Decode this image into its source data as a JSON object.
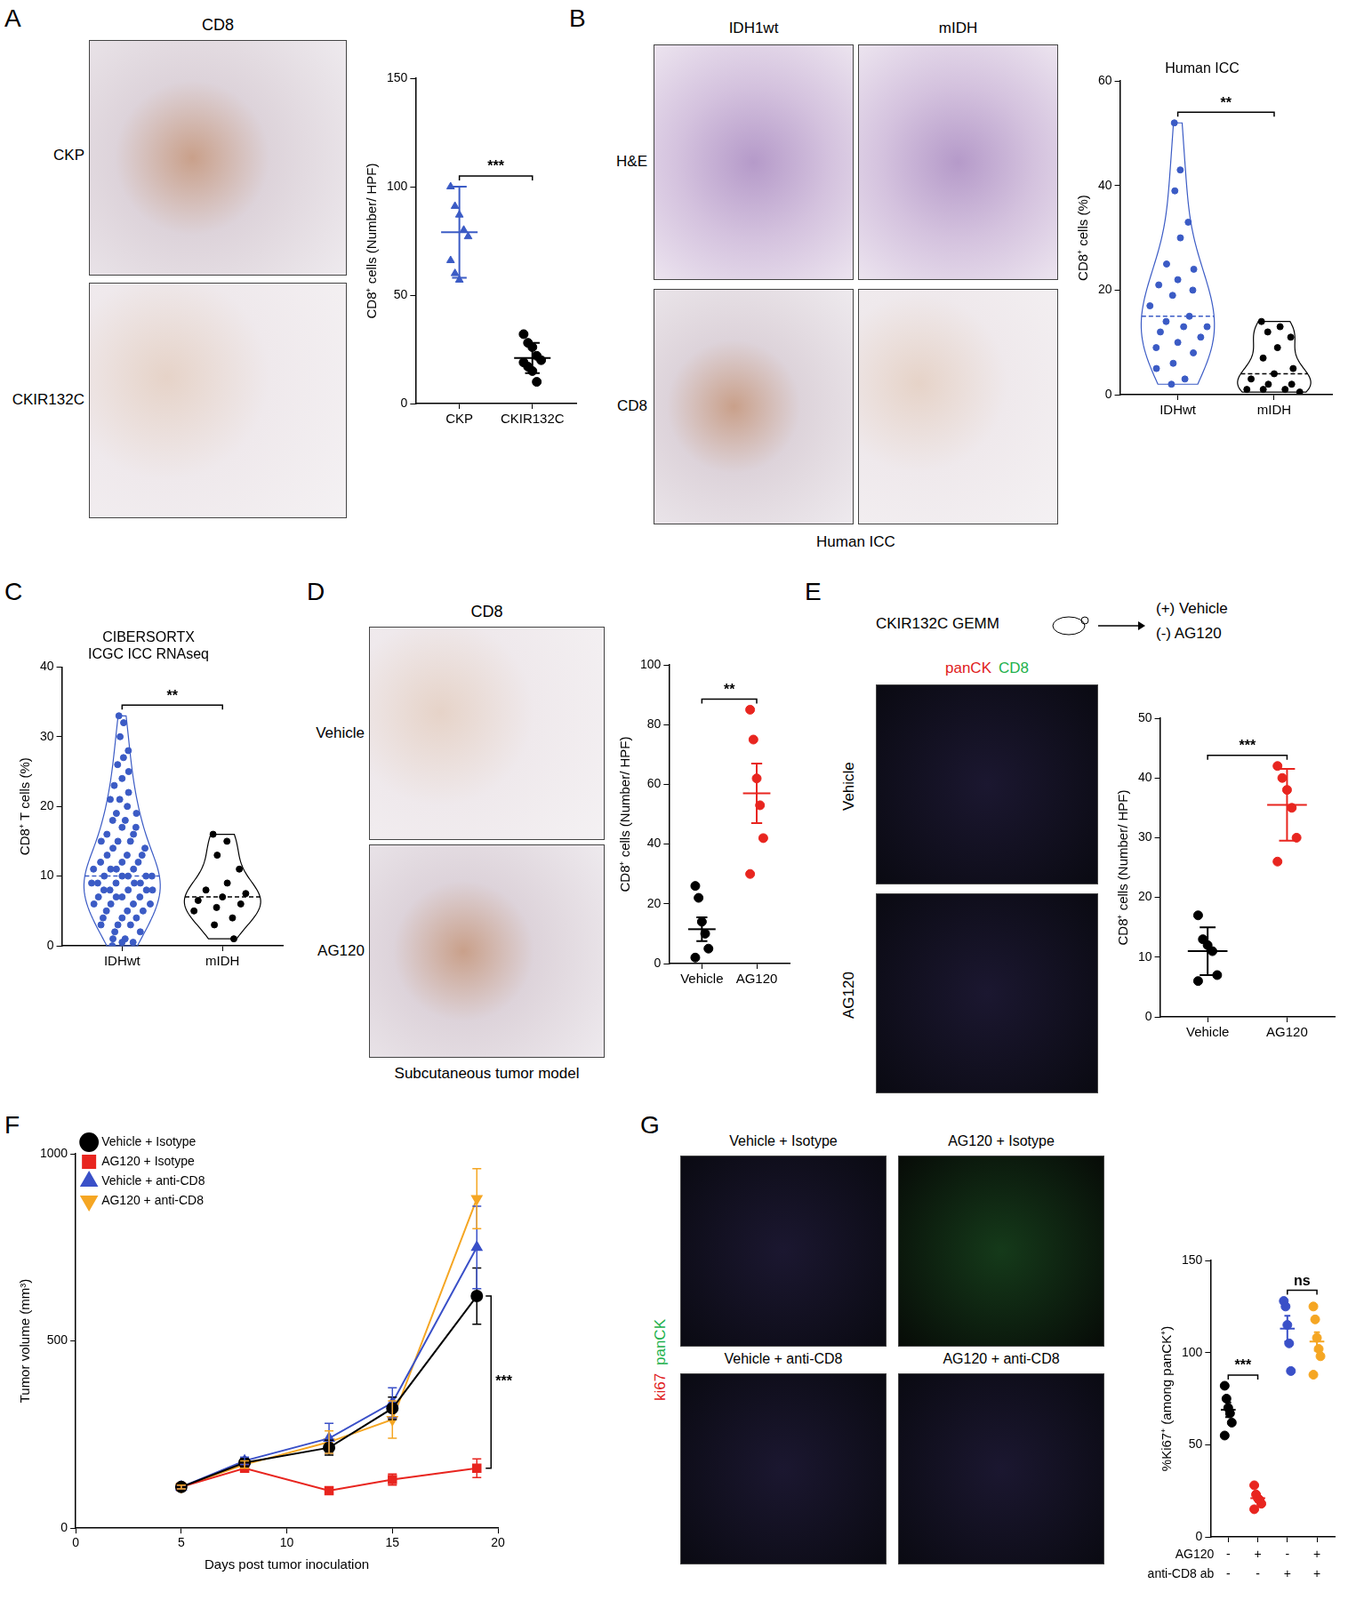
{
  "panel_letters": [
    "A",
    "B",
    "C",
    "D",
    "E",
    "F",
    "G"
  ],
  "micrographs": {
    "A": {
      "title": "CD8",
      "row_labels": [
        "CKP",
        "CKIR132C"
      ]
    },
    "B": {
      "col_labels": [
        "IDH1wt",
        "mIDH"
      ],
      "row_labels": [
        "H&E",
        "CD8"
      ],
      "caption": "Human ICC"
    },
    "D": {
      "title": "CD8",
      "row_labels": [
        "Vehicle",
        "AG120"
      ],
      "caption": "Subcutaneous tumor model"
    },
    "E": {
      "header": "CKIR132C GEMM",
      "arms": [
        "(+) Vehicle",
        "(-) AG120"
      ],
      "stains": [
        {
          "text": "panCK",
          "color": "#e0201b"
        },
        {
          "text": "CD8",
          "color": "#22b14c"
        }
      ],
      "row_labels": [
        "Vehicle",
        "AG120"
      ]
    },
    "G": {
      "image_labels": [
        "Vehicle + Isotype",
        "AG120 + Isotype",
        "Vehicle + anti-CD8",
        "AG120 + anti-CD8"
      ],
      "stains": [
        {
          "text": "ki67",
          "color": "#e0201b"
        },
        {
          "text": "panCK",
          "color": "#22b14c"
        }
      ]
    }
  },
  "chart_data": [
    {
      "type": "strip",
      "y_label": "CD8⁺ cells (Number/ HPF)",
      "categories": [
        "CKP",
        "CKIR132C"
      ],
      "groups": [
        {
          "color": "#3b5bc5",
          "marker": "triangle",
          "values": [
            100,
            91,
            87,
            80,
            77,
            66,
            60,
            57
          ],
          "mean": 79,
          "error": 21
        },
        {
          "color": "#000000",
          "marker": "circle",
          "values": [
            32,
            28,
            26,
            22,
            20,
            19,
            17,
            15,
            10
          ],
          "mean": 21,
          "error": 7
        }
      ],
      "ylim": [
        0,
        150
      ],
      "yticks": [
        0,
        50,
        100,
        150
      ],
      "grid": false,
      "annotations": [
        {
          "text": "***",
          "from": 0,
          "to": 1
        }
      ]
    },
    {
      "type": "violin",
      "title": "Human ICC",
      "y_label": "CD8⁺ cells (%)",
      "categories": [
        "IDHwt",
        "mIDH"
      ],
      "groups": [
        {
          "color": "#3b5bc5",
          "marker": "circle",
          "values": [
            52,
            43,
            39,
            33,
            30,
            25,
            24,
            22,
            21,
            20,
            19,
            17,
            15,
            14,
            13,
            13,
            12,
            11,
            10,
            9,
            8,
            6,
            5,
            3,
            2
          ]
        },
        {
          "color": "#000000",
          "marker": "circle",
          "values": [
            14,
            13,
            12,
            11,
            9,
            7,
            5,
            4,
            3,
            2,
            2,
            1,
            1,
            1,
            0.5
          ]
        }
      ],
      "ylim": [
        0,
        60
      ],
      "yticks": [
        0,
        20,
        40,
        60
      ],
      "grid": false,
      "annotations": [
        {
          "text": "**",
          "from": 0,
          "to": 1
        }
      ]
    },
    {
      "type": "violin",
      "title": [
        "CIBERSORTX",
        "ICGC ICC RNAseq"
      ],
      "y_label": "CD8⁺ T cells (%)",
      "categories": [
        "IDHwt",
        "mIDH"
      ],
      "groups": [
        {
          "color": "#3b5bc5",
          "marker": "circle",
          "values": [
            33,
            32,
            30,
            28,
            27,
            26,
            25,
            24,
            23,
            22,
            21,
            21,
            20,
            19,
            19,
            18,
            18,
            17,
            17,
            16,
            16,
            15,
            15,
            15,
            14,
            14,
            13,
            13,
            13,
            12,
            12,
            12,
            11,
            11,
            11,
            11,
            10,
            10,
            10,
            10,
            10,
            9,
            9,
            9,
            9,
            9,
            8,
            8,
            8,
            8,
            8,
            7,
            7,
            7,
            7,
            6,
            6,
            6,
            6,
            5,
            5,
            5,
            4,
            4,
            4,
            3,
            3,
            3,
            2,
            2,
            1,
            1,
            0.5,
            0.5,
            0
          ]
        },
        {
          "color": "#000000",
          "marker": "circle",
          "values": [
            16,
            15,
            13,
            11,
            9,
            8,
            7.5,
            7,
            6.5,
            6,
            5.5,
            5,
            4,
            3,
            1
          ]
        }
      ],
      "ylim": [
        0,
        40
      ],
      "yticks": [
        0,
        10,
        20,
        30,
        40
      ],
      "grid": false,
      "annotations": [
        {
          "text": "**",
          "from": 0,
          "to": 1
        }
      ]
    },
    {
      "type": "strip",
      "y_label": "CD8⁺ cells (Number/ HPF)",
      "categories": [
        "Vehicle",
        "AG120"
      ],
      "groups": [
        {
          "color": "#000000",
          "marker": "circle",
          "values": [
            26,
            22,
            14,
            10,
            5,
            2
          ],
          "mean": 11.5,
          "error": 4
        },
        {
          "color": "#e8251f",
          "marker": "circle",
          "values": [
            85,
            75,
            62,
            53,
            42,
            30
          ],
          "mean": 57,
          "error": 10
        }
      ],
      "ylim": [
        0,
        100
      ],
      "yticks": [
        0,
        20,
        40,
        60,
        80,
        100
      ],
      "grid": false,
      "annotations": [
        {
          "text": "**",
          "from": 0,
          "to": 1
        }
      ]
    },
    {
      "type": "strip",
      "y_label": "CD8⁺ cells (Number/ HPF)",
      "categories": [
        "Vehicle",
        "AG120"
      ],
      "groups": [
        {
          "color": "#000000",
          "marker": "circle",
          "values": [
            17,
            13,
            12,
            11,
            7,
            6
          ],
          "mean": 11,
          "error": 4
        },
        {
          "color": "#e8251f",
          "marker": "circle",
          "values": [
            42,
            40,
            38,
            35,
            30,
            26
          ],
          "mean": 35.5,
          "error": 6
        }
      ],
      "ylim": [
        0,
        50
      ],
      "yticks": [
        0,
        10,
        20,
        30,
        40,
        50
      ],
      "grid": false,
      "annotations": [
        {
          "text": "***",
          "from": 0,
          "to": 1
        }
      ]
    },
    {
      "type": "line",
      "x_label": "Days post tumor inoculation",
      "y_label": "Tumor volume (mm³)",
      "x": [
        5,
        8,
        12,
        15,
        19
      ],
      "series": [
        {
          "name": "Vehicle + Isotype",
          "color": "#000000",
          "marker": "circle",
          "values": [
            110,
            175,
            215,
            320,
            620
          ],
          "errors": [
            10,
            10,
            20,
            30,
            75
          ]
        },
        {
          "name": "AG120 + Isotype",
          "color": "#e8251f",
          "marker": "square",
          "values": [
            110,
            160,
            100,
            130,
            160
          ],
          "errors": [
            5,
            10,
            8,
            15,
            25
          ]
        },
        {
          "name": "Vehicle + anti-CD8",
          "color": "#3a50c8",
          "marker": "triangle",
          "values": [
            110,
            180,
            240,
            335,
            750
          ],
          "errors": [
            5,
            10,
            40,
            40,
            110
          ]
        },
        {
          "name": "AG120 + anti-CD8",
          "color": "#f5a623",
          "marker": "triangle_down",
          "values": [
            110,
            170,
            230,
            290,
            880
          ],
          "errors": [
            5,
            10,
            30,
            50,
            80
          ]
        }
      ],
      "xlim": [
        0,
        20
      ],
      "xticks": [
        0,
        5,
        10,
        15,
        20
      ],
      "ylim": [
        0,
        1000
      ],
      "yticks": [
        0,
        500,
        1000
      ],
      "grid": false,
      "legend": "upper left",
      "annotations": [
        {
          "text": "***",
          "series": [
            0,
            1
          ]
        }
      ]
    },
    {
      "type": "strip",
      "y_label": "%Ki67⁺ (among panCK⁺)",
      "categories": [
        null,
        null,
        null,
        null
      ],
      "tick_labels": "y",
      "x_table": [
        {
          "label": "AG120",
          "values": [
            "-",
            "+",
            "-",
            "+"
          ]
        },
        {
          "label": "anti-CD8 ab",
          "values": [
            "-",
            "-",
            "+",
            "+"
          ]
        }
      ],
      "groups": [
        {
          "color": "#000000",
          "marker": "circle",
          "values": [
            82,
            75,
            70,
            67,
            62,
            55
          ],
          "mean": 69,
          "error": 4
        },
        {
          "color": "#e8251f",
          "marker": "circle",
          "values": [
            28,
            23,
            21,
            20,
            18,
            15
          ],
          "mean": 21,
          "error": 2
        },
        {
          "color": "#3a50c8",
          "marker": "circle",
          "values": [
            128,
            125,
            115,
            105,
            90
          ],
          "mean": 113,
          "error": 7
        },
        {
          "color": "#f5a623",
          "marker": "circle",
          "values": [
            125,
            118,
            108,
            102,
            98,
            88
          ],
          "mean": 106,
          "error": 5
        }
      ],
      "ylim": [
        0,
        150
      ],
      "yticks": [
        0,
        50,
        100,
        150
      ],
      "grid": false,
      "annotations": [
        {
          "text": "***",
          "from": 0,
          "to": 1
        },
        {
          "text": "ns",
          "from": 2,
          "to": 3
        }
      ]
    }
  ]
}
